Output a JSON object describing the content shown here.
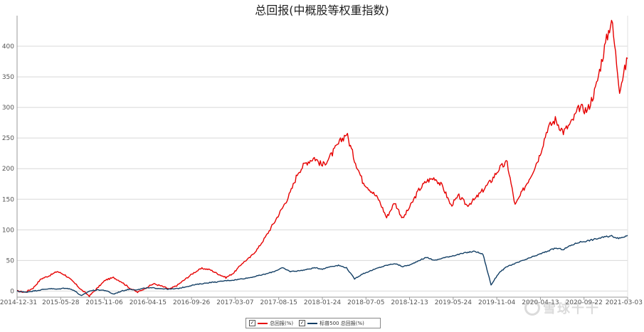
{
  "chart_data": {
    "type": "line",
    "title": "总回报(中概股等权重指数)",
    "xlabel": "",
    "ylabel": "",
    "ylim": [
      -10,
      450
    ],
    "yticks": [
      0,
      50,
      100,
      150,
      200,
      250,
      300,
      350,
      400
    ],
    "xticks": [
      "2014-12-31",
      "2015-05-28",
      "2015-11-06",
      "2016-04-15",
      "2016-09-26",
      "2017-03-07",
      "2017-08-15",
      "2018-01-24",
      "2018-07-05",
      "2018-12-13",
      "2019-05-24",
      "2019-11-04",
      "2020-04-13",
      "2020-09-22",
      "2021-03-03"
    ],
    "grid": true,
    "legend_position": "bottom",
    "series": [
      {
        "name": "总回报(%)",
        "color": "#e60000",
        "values": [
          0,
          -2,
          5,
          20,
          25,
          32,
          26,
          15,
          2,
          -8,
          5,
          18,
          22,
          15,
          5,
          -2,
          5,
          12,
          8,
          3,
          10,
          20,
          30,
          37,
          35,
          28,
          22,
          30,
          45,
          55,
          70,
          90,
          112,
          135,
          160,
          195,
          210,
          218,
          205,
          220,
          240,
          258,
          215,
          180,
          165,
          150,
          120,
          145,
          118,
          140,
          165,
          180,
          185,
          170,
          140,
          155,
          140,
          150,
          165,
          180,
          200,
          210,
          140,
          165,
          190,
          220,
          265,
          280,
          260,
          275,
          300,
          295,
          330,
          390,
          445,
          330,
          380
        ]
      },
      {
        "name": "标普500 总回报(%)",
        "color": "#123e64",
        "values": [
          0,
          -2,
          0,
          2,
          4,
          3,
          5,
          2,
          -8,
          0,
          2,
          1,
          -5,
          0,
          3,
          2,
          5,
          5,
          4,
          3,
          4,
          7,
          10,
          12,
          14,
          15,
          17,
          18,
          20,
          22,
          25,
          28,
          32,
          38,
          32,
          33,
          35,
          38,
          36,
          40,
          42,
          38,
          20,
          28,
          33,
          38,
          42,
          45,
          40,
          43,
          50,
          55,
          50,
          54,
          57,
          60,
          63,
          65,
          60,
          10,
          30,
          40,
          45,
          50,
          55,
          60,
          65,
          70,
          68,
          75,
          80,
          82,
          85,
          88,
          90,
          86,
          91
        ]
      }
    ]
  },
  "legend": {
    "series1_label": "总回报(%)",
    "series2_label": "标普500 总回报(%)"
  },
  "watermark": {
    "text": "雪球千千"
  }
}
